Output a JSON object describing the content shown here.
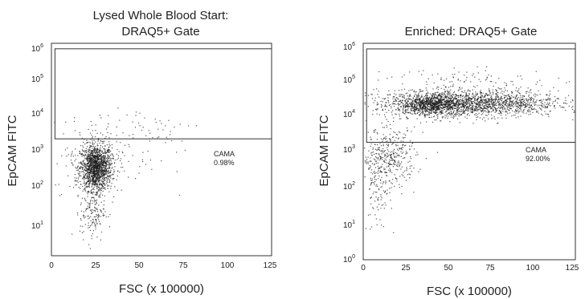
{
  "chart_data": [
    {
      "type": "scatter",
      "title_line1": "Lysed Whole Blood Start:",
      "title_line2": "DRAQ5+ Gate",
      "xlabel": "FSC (x 100000)",
      "ylabel": "EpCAM FITC",
      "xlim": [
        0,
        125
      ],
      "xticks": [
        "0",
        "25",
        "50",
        "75",
        "100",
        "125"
      ],
      "ylim_log10": [
        0,
        6
      ],
      "yscale": "log",
      "ytick_exponents": [
        "1",
        "2",
        "3",
        "4",
        "5",
        "6"
      ],
      "ytick_base": "10",
      "gate": {
        "name": "CAMA",
        "percent": "0.98%",
        "x_range": [
          2,
          125
        ],
        "y_range": [
          2000,
          700000
        ]
      },
      "clusters": [
        {
          "x_mean": 25,
          "x_sd": 4.5,
          "log10y_mean": 2.5,
          "log10y_sd": 0.32,
          "count": 1500
        },
        {
          "x_mean": 23,
          "x_sd": 3.5,
          "log10y_mean": 1.3,
          "log10y_sd": 0.45,
          "count": 180
        },
        {
          "x_mean": 48,
          "x_sd": 20,
          "log10y_mean": 3.6,
          "log10y_sd": 0.35,
          "count": 70
        },
        {
          "x_mean": 30,
          "x_sd": 15,
          "log10y_mean": 2.8,
          "log10y_sd": 0.5,
          "count": 120
        }
      ]
    },
    {
      "type": "scatter",
      "title_line1": "Enriched: DRAQ5+ Gate",
      "title_line2": "",
      "xlabel": "FSC (x 100000)",
      "ylabel": "EpCAM FITC",
      "xlim": [
        0,
        125
      ],
      "xticks": [
        "0",
        "25",
        "50",
        "75",
        "100",
        "125"
      ],
      "ylim_log10": [
        0,
        6
      ],
      "yscale": "log",
      "ytick_exponents": [
        "0",
        "1",
        "2",
        "3",
        "4",
        "5",
        "6"
      ],
      "ytick_base": "10",
      "gate": {
        "name": "CAMA",
        "percent": "92.00%",
        "x_range": [
          2,
          125
        ],
        "y_range": [
          1800,
          700000
        ]
      },
      "clusters": [
        {
          "x_mean": 62,
          "x_sd": 27,
          "log10y_mean": 4.35,
          "log10y_sd": 0.18,
          "count": 1900
        },
        {
          "x_mean": 40,
          "x_sd": 9,
          "log10y_mean": 4.3,
          "log10y_sd": 0.14,
          "count": 700
        },
        {
          "x_mean": 15,
          "x_sd": 8,
          "log10y_mean": 2.85,
          "log10y_sd": 0.4,
          "count": 400
        },
        {
          "x_mean": 8,
          "x_sd": 4,
          "log10y_mean": 1.8,
          "log10y_sd": 0.5,
          "count": 90
        },
        {
          "x_mean": 65,
          "x_sd": 25,
          "log10y_mean": 5.0,
          "log10y_sd": 0.15,
          "count": 90
        }
      ]
    }
  ]
}
